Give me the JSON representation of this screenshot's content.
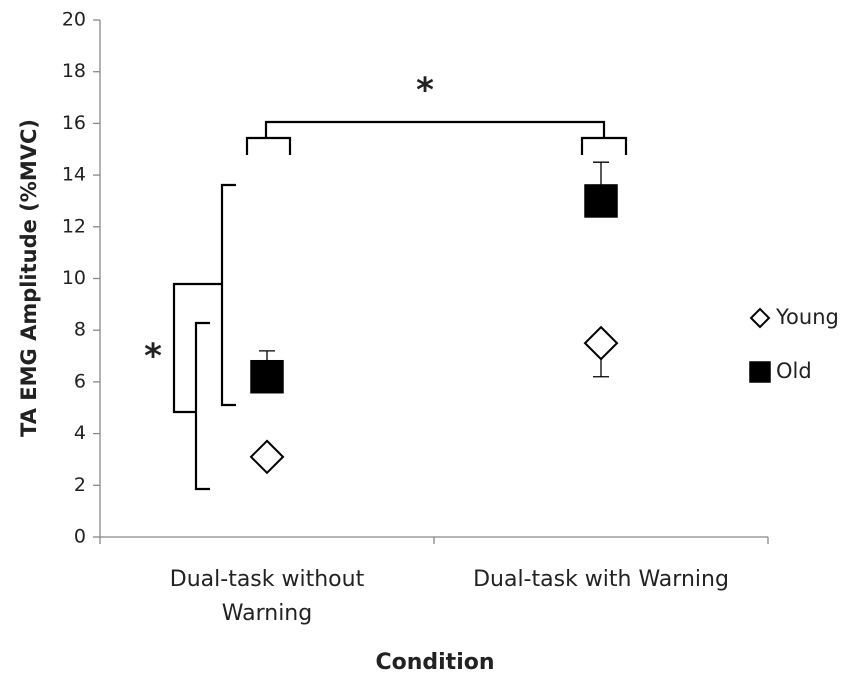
{
  "chart_data": {
    "type": "point",
    "x_label": "Condition",
    "y_label": "TA EMG Amplitude (%MVC)",
    "categories": [
      "Dual-task without\nWarning",
      "Dual-task with Warning"
    ],
    "series": [
      {
        "name": "Young",
        "marker": "diamond",
        "color": "#ffffff",
        "values": [
          3.1,
          7.5
        ],
        "errors": [
          null,
          1.3
        ],
        "error_direction": "minus"
      },
      {
        "name": "Old",
        "marker": "square",
        "color": "#000000",
        "values": [
          6.2,
          13.0
        ],
        "errors": [
          1.0,
          1.5
        ],
        "error_direction": "plus"
      }
    ],
    "ylim": [
      0,
      20
    ],
    "yticks": [
      0,
      2,
      4,
      6,
      8,
      10,
      12,
      14,
      16,
      18,
      20
    ],
    "grid": false,
    "legend": "right",
    "annotations": [
      "*",
      "*"
    ]
  }
}
